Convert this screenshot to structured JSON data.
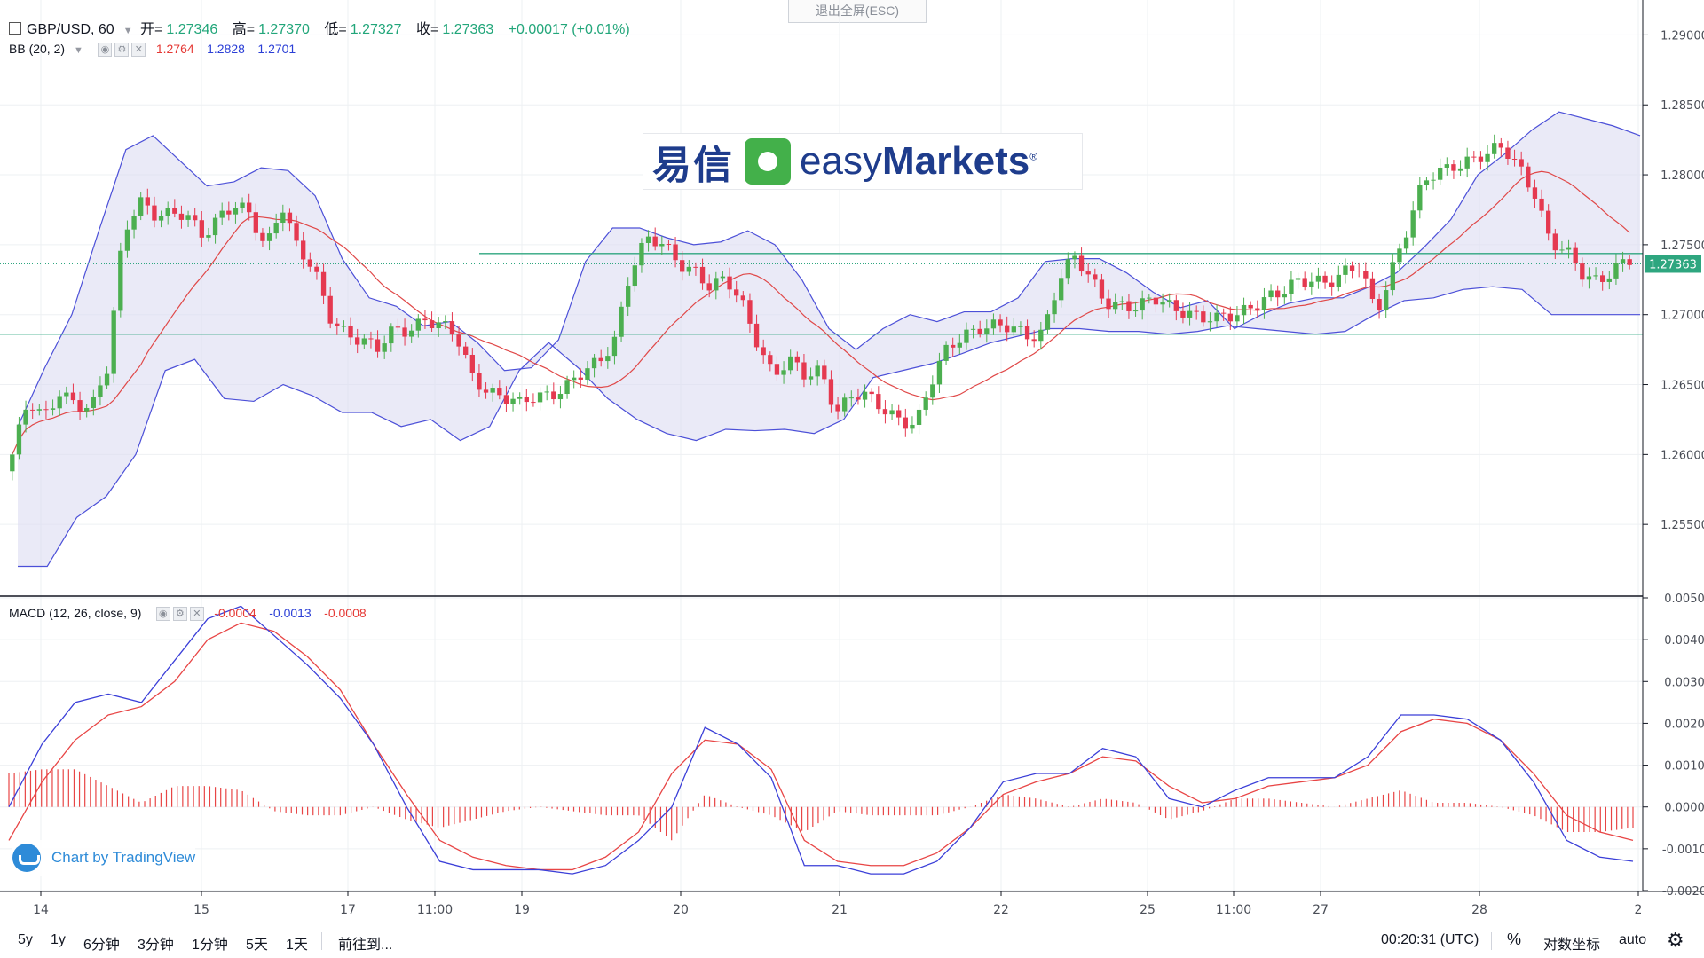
{
  "exit_fullscreen": "退出全屏(ESC)",
  "legend": {
    "symbol": "GBP/USD, 60",
    "open_label": "开=",
    "open": "1.27346",
    "high_label": "高=",
    "high": "1.27370",
    "low_label": "低=",
    "low": "1.27327",
    "close_label": "收=",
    "close": "1.27363",
    "change": "+0.00017 (+0.01%)"
  },
  "bb": {
    "name": "BB (20, 2)",
    "mid": "1.2764",
    "upper": "1.2828",
    "lower": "1.2701"
  },
  "macd": {
    "name": "MACD (12, 26, close, 9)",
    "hist": "-0.0004",
    "macd": "-0.0013",
    "signal": "-0.0008"
  },
  "watermark": {
    "cn": "易信",
    "en_light": "easy",
    "en_bold": "Markets",
    "reg": "®"
  },
  "tv_badge": "Chart by TradingView",
  "price_axis": [
    "1.29000",
    "1.28500",
    "1.28000",
    "1.27500",
    "1.27000",
    "1.26500",
    "1.26000",
    "1.25500"
  ],
  "last_price": "1.27363",
  "macd_axis": [
    "0.0050",
    "0.0040",
    "0.0030",
    "0.0020",
    "0.0010",
    "0.0000",
    "-0.0010",
    "-0.0020"
  ],
  "time_axis": [
    "14",
    "15",
    "17",
    "11:00",
    "19",
    "20",
    "21",
    "22",
    "25",
    "11:00",
    "27",
    "28",
    "2"
  ],
  "bottom": {
    "timeframes": [
      "5y",
      "1y",
      "6分钟",
      "3分钟",
      "1分钟",
      "5天",
      "1天"
    ],
    "goto": "前往到...",
    "clock": "00:20:31 (UTC)",
    "percent": "%",
    "log": "对数坐标",
    "auto": "auto"
  },
  "colors": {
    "up": "#4caf50",
    "down": "#e53950",
    "bb_band": "#4c50d8",
    "bb_fill": "#dcdcf2",
    "bb_mid": "#e04848",
    "hline": "#2ea67f",
    "macd_line": "#3b3fd8",
    "signal_line": "#e84545",
    "hist": "#e84545"
  },
  "chart_data": [
    {
      "type": "candlestick",
      "title": "GBP/USD, 60",
      "ylim": [
        1.25,
        1.2925
      ],
      "y_ticks": [
        1.255,
        1.26,
        1.265,
        1.27,
        1.275,
        1.28,
        1.285,
        1.29
      ],
      "close_path": [
        1.26,
        1.2635,
        1.2625,
        1.2648,
        1.2638,
        1.263,
        1.266,
        1.276,
        1.2785,
        1.277,
        1.2768,
        1.2772,
        1.276,
        1.277,
        1.2775,
        1.277,
        1.275,
        1.2782,
        1.2745,
        1.273,
        1.27,
        1.269,
        1.2682,
        1.2672,
        1.2688,
        1.2692,
        1.2698,
        1.269,
        1.2683,
        1.2658,
        1.2648,
        1.264,
        1.2633,
        1.2642,
        1.2646,
        1.265,
        1.2656,
        1.2664,
        1.2685,
        1.2735,
        1.2752,
        1.2748,
        1.2738,
        1.2735,
        1.272,
        1.2722,
        1.2708,
        1.2683,
        1.2658,
        1.2665,
        1.2654,
        1.2662,
        1.2633,
        1.2642,
        1.2638,
        1.2632,
        1.2628,
        1.2622,
        1.265,
        1.2675,
        1.2688,
        1.2693,
        1.269,
        1.2688,
        1.2686,
        1.269,
        1.2725,
        1.2738,
        1.2725,
        1.2712,
        1.2708,
        1.2702,
        1.271,
        1.2708,
        1.2705,
        1.2696,
        1.2694,
        1.27,
        1.2708,
        1.2712,
        1.2712,
        1.2722,
        1.2728,
        1.2725,
        1.2728,
        1.2732,
        1.2702,
        1.2735,
        1.2762,
        1.2792,
        1.2802,
        1.281,
        1.2812,
        1.2812,
        1.2818,
        1.2808,
        1.279,
        1.275,
        1.2742,
        1.273,
        1.2727,
        1.2733,
        1.2736
      ],
      "bb_upper_path": [
        1.262,
        1.2662,
        1.27,
        1.276,
        1.2818,
        1.2828,
        1.281,
        1.2792,
        1.2795,
        1.2805,
        1.2803,
        1.2785,
        1.274,
        1.2712,
        1.2706,
        1.2692,
        1.2695,
        1.268,
        1.266,
        1.2662,
        1.2682,
        1.2738,
        1.2762,
        1.2762,
        1.2755,
        1.275,
        1.2752,
        1.276,
        1.275,
        1.2725,
        1.269,
        1.2675,
        1.269,
        1.27,
        1.2695,
        1.2702,
        1.2702,
        1.2712,
        1.2738,
        1.274,
        1.274,
        1.273,
        1.2716,
        1.2705,
        1.271,
        1.269,
        1.27,
        1.2708,
        1.2712,
        1.2712,
        1.272,
        1.273,
        1.2748,
        1.2768,
        1.28,
        1.2815,
        1.2832,
        1.2845,
        1.284,
        1.2835,
        1.2828
      ],
      "bb_lower_path": [
        1.252,
        1.252,
        1.2555,
        1.257,
        1.26,
        1.266,
        1.2668,
        1.264,
        1.2638,
        1.265,
        1.2642,
        1.263,
        1.263,
        1.262,
        1.2625,
        1.261,
        1.262,
        1.266,
        1.268,
        1.2662,
        1.264,
        1.2625,
        1.2615,
        1.261,
        1.2618,
        1.2617,
        1.2618,
        1.2615,
        1.2625,
        1.2655,
        1.266,
        1.2665,
        1.2672,
        1.268,
        1.2685,
        1.269,
        1.269,
        1.2688,
        1.2688,
        1.2686,
        1.2688,
        1.2692,
        1.269,
        1.2688,
        1.2686,
        1.2688,
        1.27,
        1.271,
        1.2712,
        1.2718,
        1.272,
        1.2718,
        1.27,
        1.27,
        1.27,
        1.27
      ],
      "horizontal_levels": [
        1.27437,
        1.2686
      ]
    },
    {
      "type": "line",
      "title": "MACD (12, 26, close, 9)",
      "ylim": [
        -0.002,
        0.005
      ],
      "y_ticks": [
        -0.002,
        -0.001,
        0,
        0.001,
        0.002,
        0.003,
        0.004,
        0.005
      ],
      "series": [
        {
          "name": "MACD",
          "values": [
            0.0,
            0.0015,
            0.0025,
            0.0027,
            0.0025,
            0.0035,
            0.0045,
            0.0048,
            0.0041,
            0.0034,
            0.0026,
            0.0015,
            0.0,
            -0.0013,
            -0.0015,
            -0.0015,
            -0.0015,
            -0.0016,
            -0.0014,
            -0.0008,
            0.0,
            0.0019,
            0.0015,
            0.0007,
            -0.0014,
            -0.0014,
            -0.0016,
            -0.0016,
            -0.0013,
            -0.0005,
            0.0006,
            0.0008,
            0.0008,
            0.0014,
            0.0012,
            0.0002,
            0.0,
            0.0004,
            0.0007,
            0.0007,
            0.0007,
            0.0012,
            0.0022,
            0.0022,
            0.0021,
            0.0016,
            0.0006,
            -0.0008,
            -0.0012,
            -0.0013
          ]
        },
        {
          "name": "Signal",
          "values": [
            -0.0008,
            0.0006,
            0.0016,
            0.0022,
            0.0024,
            0.003,
            0.004,
            0.0044,
            0.0042,
            0.0036,
            0.0028,
            0.0015,
            0.0003,
            -0.0008,
            -0.0012,
            -0.0014,
            -0.0015,
            -0.0015,
            -0.0012,
            -0.0006,
            0.0008,
            0.0016,
            0.0015,
            0.0009,
            -0.0008,
            -0.0013,
            -0.0014,
            -0.0014,
            -0.0011,
            -0.0005,
            0.0003,
            0.0006,
            0.0008,
            0.0012,
            0.0011,
            0.0005,
            0.0001,
            0.0002,
            0.0005,
            0.0006,
            0.0007,
            0.001,
            0.0018,
            0.0021,
            0.002,
            0.0016,
            0.0008,
            -0.0002,
            -0.0006,
            -0.0008
          ]
        }
      ]
    }
  ]
}
